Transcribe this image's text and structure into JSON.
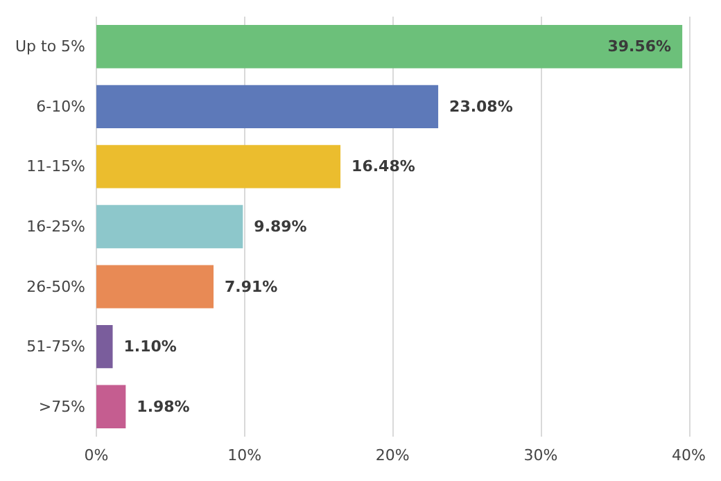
{
  "chart_data": {
    "type": "bar",
    "orientation": "horizontal",
    "categories": [
      "Up to 5%",
      "6-10%",
      "11-15%",
      "16-25%",
      "26-50%",
      "51-75%",
      ">75%"
    ],
    "values": [
      39.56,
      23.08,
      16.48,
      9.89,
      7.91,
      1.1,
      1.98
    ],
    "colors": [
      "#6cc07a",
      "#5d79b9",
      "#ebbd2e",
      "#8dc7cb",
      "#e88a55",
      "#7a5d9c",
      "#c55d90"
    ],
    "value_labels": [
      "39.56%",
      "23.08%",
      "16.48%",
      "9.89%",
      "7.91%",
      "1.10%",
      "1.98%"
    ],
    "xlim": [
      0,
      40
    ],
    "xticks": [
      {
        "value": 0,
        "label": "0%"
      },
      {
        "value": 10,
        "label": "10%"
      },
      {
        "value": 20,
        "label": "20%"
      },
      {
        "value": 30,
        "label": "30%"
      },
      {
        "value": 40,
        "label": "40%"
      }
    ],
    "grid": "x"
  }
}
